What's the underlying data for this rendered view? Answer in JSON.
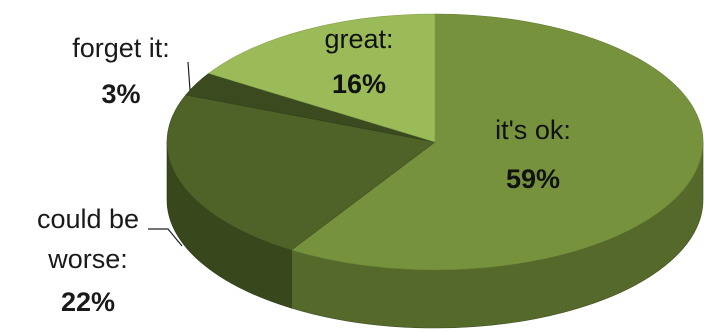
{
  "chart_data": {
    "type": "pie",
    "style": "3d-exploded-none",
    "slices": [
      {
        "label": "it's ok:",
        "value": 59,
        "value_label": "59%",
        "color": "#76923c"
      },
      {
        "label": "could be worse:",
        "label_lines": [
          "could be",
          "worse:"
        ],
        "value": 22,
        "value_label": "22%",
        "color": "#4f6228"
      },
      {
        "label": "forget it:",
        "value": 3,
        "value_label": "3%",
        "color": "#3b4a1f"
      },
      {
        "label": "great:",
        "value": 16,
        "value_label": "16%",
        "color": "#9bbb59"
      }
    ],
    "legend": "none"
  }
}
